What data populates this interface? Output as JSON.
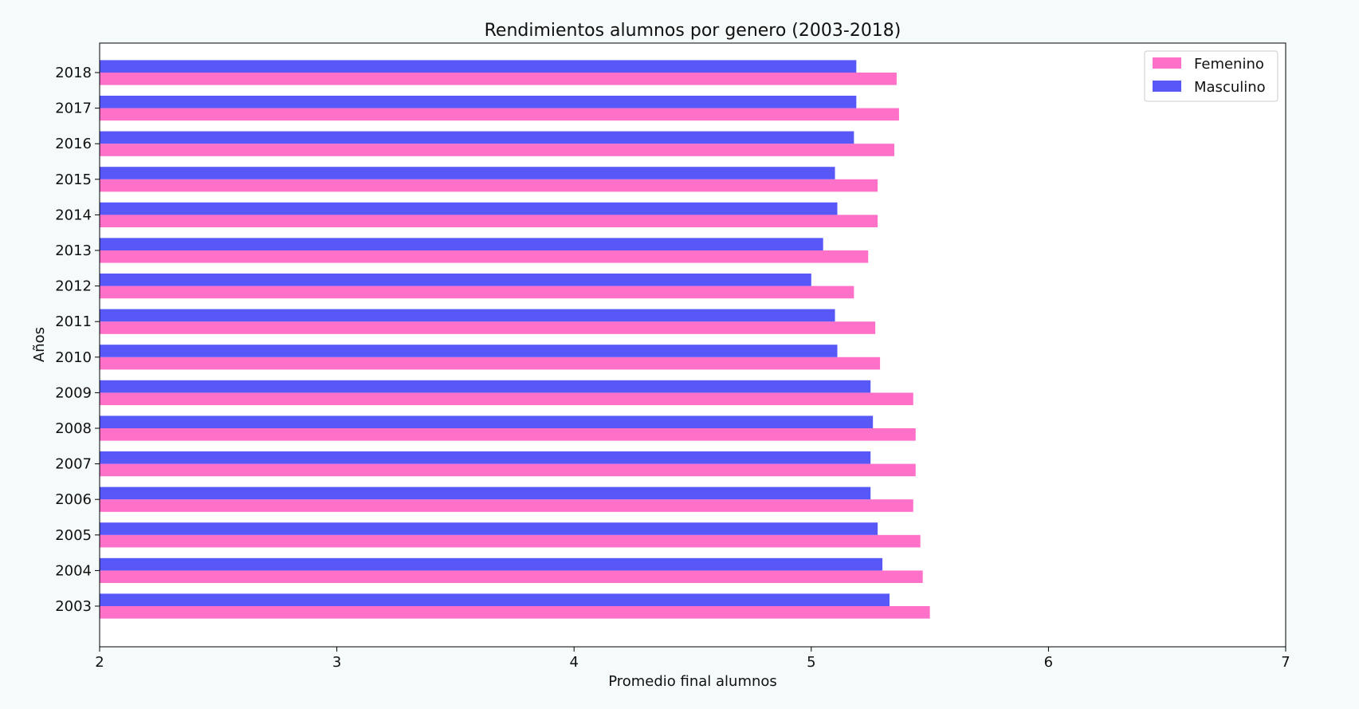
{
  "chart_data": {
    "type": "bar",
    "orientation": "horizontal",
    "title": "Rendimientos alumnos por genero (2003-2018)",
    "xlabel": "Promedio final alumnos",
    "ylabel": "Años",
    "xlim": [
      2,
      7
    ],
    "xticks": [
      "2",
      "3",
      "4",
      "5",
      "6",
      "7"
    ],
    "categories": [
      "2003",
      "2004",
      "2005",
      "2006",
      "2007",
      "2008",
      "2009",
      "2010",
      "2011",
      "2012",
      "2013",
      "2014",
      "2015",
      "2016",
      "2017",
      "2018"
    ],
    "series": [
      {
        "name": "Femenino",
        "color": "#ff70c8",
        "values": [
          5.5,
          5.47,
          5.46,
          5.43,
          5.44,
          5.44,
          5.43,
          5.29,
          5.27,
          5.18,
          5.24,
          5.28,
          5.28,
          5.35,
          5.37,
          5.36
        ]
      },
      {
        "name": "Masculino",
        "color": "#5858f8",
        "values": [
          5.33,
          5.3,
          5.28,
          5.25,
          5.25,
          5.26,
          5.25,
          5.11,
          5.1,
          5.0,
          5.05,
          5.11,
          5.1,
          5.18,
          5.19,
          5.19
        ]
      }
    ],
    "legend_position": "top-right",
    "grid": false
  }
}
